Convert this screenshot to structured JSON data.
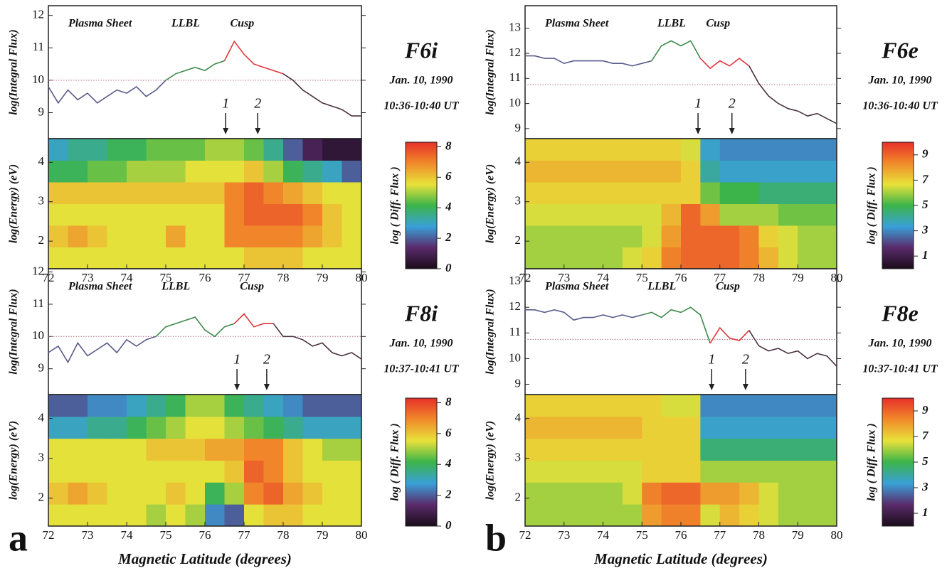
{
  "chart_data": [
    {
      "type": "line",
      "title": "F6i",
      "date": "Jan. 10, 1990",
      "time": "10:36-10:40 UT",
      "ylabel": "log(Integral Flux)",
      "xlim": [
        72,
        80
      ],
      "ylim": [
        8.2,
        12.3
      ],
      "yticks": [
        9,
        10,
        11,
        12
      ],
      "reference_line": 10,
      "series": [
        {
          "name": "Plasma Sheet",
          "color": "#5a5a8c",
          "x": [
            72,
            72.25,
            72.5,
            72.75,
            73,
            73.25,
            73.5,
            73.75,
            74,
            74.25,
            74.5,
            74.75,
            75
          ],
          "values": [
            9.8,
            9.3,
            9.7,
            9.4,
            9.6,
            9.3,
            9.5,
            9.7,
            9.6,
            9.8,
            9.5,
            9.7,
            10.0
          ]
        },
        {
          "name": "LLBL",
          "color": "#3f8a4a",
          "x": [
            75,
            75.25,
            75.5,
            75.75,
            76,
            76.25,
            76.5
          ],
          "values": [
            10.0,
            10.2,
            10.3,
            10.4,
            10.3,
            10.5,
            10.6
          ]
        },
        {
          "name": "Cusp",
          "color": "#e0343a",
          "x": [
            76.5,
            76.75,
            77,
            77.25,
            77.5,
            77.75,
            78
          ],
          "values": [
            10.6,
            11.2,
            10.8,
            10.5,
            10.4,
            10.3,
            10.2
          ]
        },
        {
          "color": "#4a3040",
          "x": [
            78,
            78.25,
            78.5,
            78.75,
            79,
            79.25,
            79.5,
            79.75,
            80
          ],
          "values": [
            10.2,
            10.0,
            9.7,
            9.5,
            9.3,
            9.2,
            9.1,
            8.9,
            8.9
          ]
        }
      ],
      "annotations": [
        {
          "text": "1",
          "x": 76.53
        },
        {
          "text": "2",
          "x": 77.35
        }
      ]
    },
    {
      "type": "heatmap",
      "ylabel": "log(Energy) (eV)",
      "xlim": [
        72,
        80
      ],
      "ylim": [
        1.3,
        4.6
      ],
      "yticks": [
        2,
        3,
        4
      ],
      "x_edges": [
        72,
        72.5,
        73,
        73.5,
        74,
        74.5,
        75,
        75.5,
        76,
        76.5,
        77,
        77.5,
        78,
        78.5,
        79,
        79.5,
        80
      ],
      "y_edges": [
        1.3,
        1.85,
        2.4,
        2.95,
        3.5,
        4.05,
        4.6
      ],
      "z": [
        [
          5.5,
          5.5,
          5.5,
          5.5,
          5.5,
          5.5,
          5.5,
          5.5,
          5.5,
          5.5,
          6,
          6,
          6,
          5.5,
          5.5,
          5.5
        ],
        [
          6,
          6.5,
          6,
          5.5,
          5.5,
          5.5,
          6.5,
          5.5,
          5.5,
          7,
          7,
          7,
          7,
          6.5,
          6,
          5.5
        ],
        [
          5.5,
          5.5,
          5.5,
          5.5,
          5.5,
          5.5,
          5.5,
          5.5,
          5.5,
          7,
          7.5,
          7.5,
          7.5,
          7,
          6,
          5.5
        ],
        [
          6,
          6,
          6,
          6,
          6,
          6,
          6,
          6,
          6,
          7,
          7.5,
          7,
          6.5,
          6,
          5.5,
          5.5
        ],
        [
          4,
          4,
          4.5,
          4.5,
          5,
          5,
          5,
          5.5,
          5.5,
          5.5,
          6,
          5,
          4,
          3.5,
          3,
          2
        ],
        [
          3,
          3.5,
          3.5,
          4,
          4,
          4.5,
          4.5,
          4.5,
          5,
          5,
          4.5,
          3.5,
          2,
          1,
          0.5,
          0.5
        ]
      ],
      "clim": [
        0,
        8.3
      ],
      "cticks": [
        0,
        2,
        4,
        6,
        8
      ],
      "clabel": "log ( Diff. Flux )",
      "colormap": [
        "#1a0d1a",
        "#5a2a6a",
        "#3aa0d8",
        "#3cb44a",
        "#e8e23a",
        "#f08a2a",
        "#e8302a"
      ],
      "xticks": [
        72,
        73,
        74,
        75,
        76,
        77,
        78,
        79,
        80
      ]
    },
    {
      "type": "line",
      "title": "F8i",
      "date": "Jan. 10, 1990",
      "time": "10:37-10:41 UT",
      "ylabel": "log(Integral Flux)",
      "xlim": [
        72,
        80
      ],
      "ylim": [
        8.2,
        12.1
      ],
      "yticks": [
        9,
        10,
        11,
        12
      ],
      "reference_line": 10,
      "series": [
        {
          "name": "Plasma Sheet",
          "color": "#5a5a8c",
          "x": [
            72,
            72.25,
            72.5,
            72.75,
            73,
            73.25,
            73.5,
            73.75,
            74,
            74.25,
            74.5,
            74.75
          ],
          "values": [
            9.5,
            9.7,
            9.2,
            9.8,
            9.4,
            9.6,
            9.8,
            9.5,
            9.9,
            9.7,
            9.9,
            10.0
          ]
        },
        {
          "name": "LLBL",
          "color": "#3f8a4a",
          "x": [
            74.75,
            75,
            75.25,
            75.5,
            75.75,
            76,
            76.25,
            76.5,
            76.75
          ],
          "values": [
            10.0,
            10.3,
            10.4,
            10.5,
            10.6,
            10.2,
            10.0,
            10.3,
            10.4
          ]
        },
        {
          "name": "Cusp",
          "color": "#e0343a",
          "x": [
            76.75,
            77,
            77.25,
            77.5,
            77.75
          ],
          "values": [
            10.4,
            10.7,
            10.3,
            10.4,
            10.4
          ]
        },
        {
          "color": "#4a3040",
          "x": [
            77.75,
            78,
            78.25,
            78.5,
            78.75,
            79,
            79.25,
            79.5,
            79.75,
            80
          ],
          "values": [
            10.4,
            10.0,
            10.0,
            9.9,
            9.7,
            9.8,
            9.5,
            9.4,
            9.5,
            9.3
          ]
        }
      ],
      "annotations": [
        {
          "text": "1",
          "x": 76.82
        },
        {
          "text": "2",
          "x": 77.58
        }
      ]
    },
    {
      "type": "heatmap",
      "ylabel": "log(Energy) (eV)",
      "xlim": [
        72,
        80
      ],
      "ylim": [
        1.3,
        4.6
      ],
      "yticks": [
        2,
        3,
        4
      ],
      "x_edges": [
        72,
        72.5,
        73,
        73.5,
        74,
        74.5,
        75,
        75.5,
        76,
        76.5,
        77,
        77.5,
        78,
        78.5,
        79,
        79.5,
        80
      ],
      "y_edges": [
        1.3,
        1.85,
        2.4,
        2.95,
        3.5,
        4.05,
        4.6
      ],
      "z": [
        [
          5.5,
          5.5,
          5.5,
          5.5,
          5.5,
          5,
          5.5,
          5,
          2.5,
          2,
          5.5,
          6,
          6,
          5.5,
          5.5,
          5.5
        ],
        [
          6,
          6.5,
          6,
          5.5,
          5.5,
          5.5,
          6,
          5.5,
          4,
          5,
          7,
          7.5,
          6.5,
          6,
          5.5,
          5.5
        ],
        [
          5.5,
          5.5,
          5.5,
          5.5,
          5.5,
          5.5,
          5.5,
          5.5,
          5.5,
          6,
          7.5,
          7,
          6,
          5.5,
          5.5,
          5.5
        ],
        [
          5.5,
          5.5,
          5.5,
          5.5,
          5.5,
          6,
          6,
          6,
          6.5,
          6.5,
          7,
          7,
          6,
          5.5,
          5,
          5
        ],
        [
          3,
          3,
          3.5,
          3.5,
          4,
          4.5,
          5,
          5.5,
          5.5,
          5,
          4.5,
          4,
          3.5,
          3,
          3,
          3
        ],
        [
          2,
          2,
          2.5,
          2.5,
          3,
          3.5,
          4,
          5,
          5,
          4,
          3.5,
          3,
          2.5,
          2,
          2,
          2
        ]
      ],
      "clim": [
        0,
        8.3
      ],
      "cticks": [
        0,
        2,
        4,
        6,
        8
      ],
      "clabel": "log ( Diff. Flux )",
      "colormap": [
        "#1a0d1a",
        "#5a2a6a",
        "#3aa0d8",
        "#3cb44a",
        "#e8e23a",
        "#f08a2a",
        "#e8302a"
      ],
      "xticks": [
        72,
        73,
        74,
        75,
        76,
        77,
        78,
        79,
        80
      ],
      "xlabel": "Magnetic Latitude (degrees)",
      "panel": "a"
    },
    {
      "type": "line",
      "title": "F6e",
      "date": "Jan. 10, 1990",
      "time": "10:36-10:40 UT",
      "ylabel": "log(Integral Flux)",
      "xlim": [
        72,
        80
      ],
      "ylim": [
        8.6,
        13.9
      ],
      "yticks": [
        9,
        10,
        11,
        12,
        13
      ],
      "reference_line": 10.75,
      "series": [
        {
          "name": "Plasma Sheet",
          "color": "#5a5a8c",
          "x": [
            72,
            72.25,
            72.5,
            72.75,
            73,
            73.25,
            73.5,
            73.75,
            74,
            74.25,
            74.5,
            74.75,
            75,
            75.25
          ],
          "values": [
            11.9,
            11.9,
            11.8,
            11.8,
            11.6,
            11.7,
            11.7,
            11.7,
            11.7,
            11.6,
            11.6,
            11.5,
            11.6,
            11.7
          ]
        },
        {
          "name": "LLBL",
          "color": "#3f8a4a",
          "x": [
            75.25,
            75.5,
            75.75,
            76,
            76.25,
            76.5
          ],
          "values": [
            11.7,
            12.3,
            12.5,
            12.3,
            12.5,
            11.8
          ]
        },
        {
          "name": "Cusp",
          "color": "#e0343a",
          "x": [
            76.5,
            76.75,
            77,
            77.25,
            77.5,
            77.75
          ],
          "values": [
            11.8,
            11.4,
            11.7,
            11.5,
            11.8,
            11.5
          ]
        },
        {
          "color": "#4a3040",
          "x": [
            77.75,
            78,
            78.25,
            78.5,
            78.75,
            79,
            79.25,
            79.5,
            79.75,
            80
          ],
          "values": [
            11.5,
            10.8,
            10.3,
            10.0,
            9.8,
            9.7,
            9.5,
            9.6,
            9.4,
            9.2
          ]
        }
      ],
      "annotations": [
        {
          "text": "1",
          "x": 76.44
        },
        {
          "text": "2",
          "x": 77.31
        }
      ]
    },
    {
      "type": "heatmap",
      "ylabel": "log(Energy) (eV)",
      "xlim": [
        72,
        80
      ],
      "ylim": [
        1.3,
        4.6
      ],
      "yticks": [
        2,
        3,
        4
      ],
      "x_edges": [
        72,
        72.5,
        73,
        73.5,
        74,
        74.5,
        75,
        75.5,
        76,
        76.5,
        77,
        77.5,
        78,
        78.5,
        79,
        79.5,
        80
      ],
      "y_edges": [
        1.3,
        1.85,
        2.4,
        2.95,
        3.5,
        4.05,
        4.6
      ],
      "z": [
        [
          6,
          6,
          6,
          6,
          6,
          6.5,
          7,
          8.5,
          9,
          9,
          9,
          8.5,
          7.5,
          6.5,
          6,
          6
        ],
        [
          6,
          6,
          6,
          6,
          6,
          6,
          6.5,
          8,
          9,
          9,
          9,
          8.5,
          7,
          6.5,
          6,
          6
        ],
        [
          6.5,
          6.5,
          6.5,
          6.5,
          6.5,
          6.5,
          6.5,
          7.5,
          9,
          8,
          6,
          6,
          6,
          5.5,
          5.5,
          5.5
        ],
        [
          7,
          7,
          7,
          7,
          7,
          7,
          7,
          7,
          7,
          5.5,
          5,
          5,
          4.5,
          4.5,
          4.5,
          4.5
        ],
        [
          7.5,
          7.5,
          7.5,
          7.5,
          7.5,
          7.5,
          7.5,
          7.5,
          7,
          4,
          3.5,
          3.5,
          3.5,
          3.5,
          3.5,
          3.5
        ],
        [
          7,
          7,
          7,
          7,
          7,
          7,
          7,
          7,
          6.5,
          3.5,
          3,
          3,
          3,
          3,
          3,
          3
        ]
      ],
      "clim": [
        0,
        10
      ],
      "cticks": [
        1,
        3,
        5,
        7,
        9
      ],
      "clabel": "log ( Diff. Flux )",
      "colormap": [
        "#1a0d1a",
        "#5a2a6a",
        "#3aa0d8",
        "#3cb44a",
        "#e8e23a",
        "#f08a2a",
        "#e8302a"
      ],
      "xticks": [
        72,
        73,
        74,
        75,
        76,
        77,
        78,
        79,
        80
      ]
    },
    {
      "type": "line",
      "title": "F8e",
      "date": "Jan. 10, 1990",
      "time": "10:37-10:41 UT",
      "ylabel": "log(Integral Flux)",
      "xlim": [
        72,
        80
      ],
      "ylim": [
        8.6,
        13.5
      ],
      "yticks": [
        9,
        10,
        11,
        12,
        13
      ],
      "reference_line": 10.75,
      "series": [
        {
          "name": "Plasma Sheet",
          "color": "#5a5a8c",
          "x": [
            72,
            72.25,
            72.5,
            72.75,
            73,
            73.25,
            73.5,
            73.75,
            74,
            74.25,
            74.5,
            74.75,
            75
          ],
          "values": [
            11.9,
            11.9,
            11.8,
            11.9,
            11.8,
            11.5,
            11.6,
            11.6,
            11.7,
            11.6,
            11.7,
            11.6,
            11.7
          ]
        },
        {
          "name": "LLBL",
          "color": "#3f8a4a",
          "x": [
            75,
            75.25,
            75.5,
            75.75,
            76,
            76.25,
            76.5,
            76.75
          ],
          "values": [
            11.7,
            11.8,
            11.6,
            11.9,
            11.8,
            12.0,
            11.7,
            10.6
          ]
        },
        {
          "name": "Cusp",
          "color": "#e0343a",
          "x": [
            76.75,
            77,
            77.25,
            77.5,
            77.75
          ],
          "values": [
            10.6,
            11.2,
            10.8,
            10.7,
            11.1
          ]
        },
        {
          "color": "#4a3040",
          "x": [
            77.75,
            78,
            78.25,
            78.5,
            78.75,
            79,
            79.25,
            79.5,
            79.75,
            80
          ],
          "values": [
            11.1,
            10.5,
            10.3,
            10.4,
            10.2,
            10.3,
            10.0,
            10.2,
            10.1,
            9.7
          ]
        }
      ],
      "annotations": [
        {
          "text": "1",
          "x": 76.79
        },
        {
          "text": "2",
          "x": 77.66
        }
      ]
    },
    {
      "type": "heatmap",
      "ylabel": "log(Energy) (eV)",
      "xlim": [
        72,
        80
      ],
      "ylim": [
        1.3,
        4.6
      ],
      "yticks": [
        2,
        3,
        4
      ],
      "x_edges": [
        72,
        72.5,
        73,
        73.5,
        74,
        74.5,
        75,
        75.5,
        76,
        76.5,
        77,
        77.5,
        78,
        78.5,
        79,
        79.5,
        80
      ],
      "y_edges": [
        1.3,
        1.85,
        2.4,
        2.95,
        3.5,
        4.05,
        4.6
      ],
      "z": [
        [
          6,
          6,
          6,
          6,
          6,
          6,
          8,
          8.5,
          8.5,
          6.5,
          7.5,
          7,
          6.5,
          6,
          6,
          6
        ],
        [
          6,
          6,
          6,
          6,
          6,
          6.5,
          8.5,
          9,
          9,
          8,
          8,
          7.5,
          6.5,
          6,
          6,
          6
        ],
        [
          6.5,
          6.5,
          6.5,
          6.5,
          6.5,
          6.5,
          7,
          7,
          7,
          6,
          6,
          6,
          6,
          6,
          6,
          6
        ],
        [
          7,
          7,
          7,
          7,
          7,
          7,
          7,
          7,
          7,
          4.5,
          4.5,
          4.5,
          4.5,
          4.5,
          4.5,
          4.5
        ],
        [
          7.5,
          7.5,
          7.5,
          7.5,
          7.5,
          7.5,
          7,
          7,
          7,
          3.5,
          3.5,
          3.5,
          3.5,
          3.5,
          3.5,
          3.5
        ],
        [
          7,
          7,
          7,
          7,
          7,
          7,
          7,
          6.5,
          6.5,
          3,
          3,
          3,
          3,
          3,
          3,
          3
        ]
      ],
      "clim": [
        0,
        10
      ],
      "cticks": [
        1,
        3,
        5,
        7,
        9
      ],
      "clabel": "log ( Diff. Flux )",
      "colormap": [
        "#1a0d1a",
        "#5a2a6a",
        "#3aa0d8",
        "#3cb44a",
        "#e8e23a",
        "#f08a2a",
        "#e8302a"
      ],
      "xticks": [
        72,
        73,
        74,
        75,
        76,
        77,
        78,
        79,
        80
      ],
      "xlabel": "Magnetic Latitude (degrees)",
      "panel": "b"
    }
  ]
}
